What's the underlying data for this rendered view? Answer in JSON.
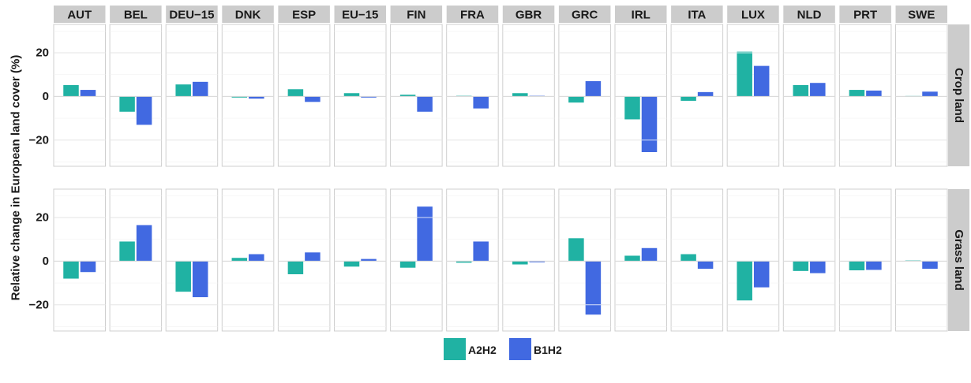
{
  "chart_data": {
    "type": "bar",
    "ylabel": "Relative change in European land cover (%)",
    "ylim": [
      -32,
      33
    ],
    "yticks": [
      -20,
      0,
      20
    ],
    "ytick_labels": [
      "−20",
      "0",
      "20"
    ],
    "grid": true,
    "legend_position": "bottom",
    "columns": [
      "AUT",
      "BEL",
      "DEU−15",
      "DNK",
      "ESP",
      "EU−15",
      "FIN",
      "FRA",
      "GBR",
      "GRC",
      "IRL",
      "ITA",
      "LUX",
      "NLD",
      "PRT",
      "SWE"
    ],
    "rows": [
      "Crop land",
      "Grass land"
    ],
    "series": [
      {
        "name": "A2H2",
        "color": "#20b2a3",
        "values": {
          "Crop land": [
            5.2,
            -7.0,
            5.5,
            -0.5,
            3.3,
            1.5,
            0.8,
            0.3,
            1.5,
            -2.8,
            -10.5,
            -2.0,
            20.5,
            5.2,
            3.0,
            0.2
          ],
          "Grass land": [
            -8.0,
            9.0,
            -14.0,
            1.5,
            -6.0,
            -2.5,
            -3.0,
            -0.7,
            -1.5,
            10.5,
            2.5,
            3.2,
            -18.0,
            -4.5,
            -4.2,
            0.3
          ]
        }
      },
      {
        "name": "B1H2",
        "color": "#4169e1",
        "values": {
          "Crop land": [
            3.0,
            -13.0,
            6.7,
            -1.0,
            -2.5,
            -0.5,
            -7.0,
            -5.5,
            0.3,
            7.0,
            -25.5,
            2.0,
            14.0,
            6.2,
            2.7,
            2.2
          ],
          "Grass land": [
            -5.0,
            16.5,
            -16.5,
            3.2,
            4.0,
            1.0,
            25.0,
            9.0,
            -0.5,
            -24.5,
            6.0,
            -3.5,
            -12.0,
            -5.5,
            -4.0,
            -3.5
          ]
        }
      }
    ]
  },
  "legend": {
    "items": [
      {
        "label": "A2H2",
        "color": "#20b2a3"
      },
      {
        "label": "B1H2",
        "color": "#4169e1"
      }
    ]
  }
}
